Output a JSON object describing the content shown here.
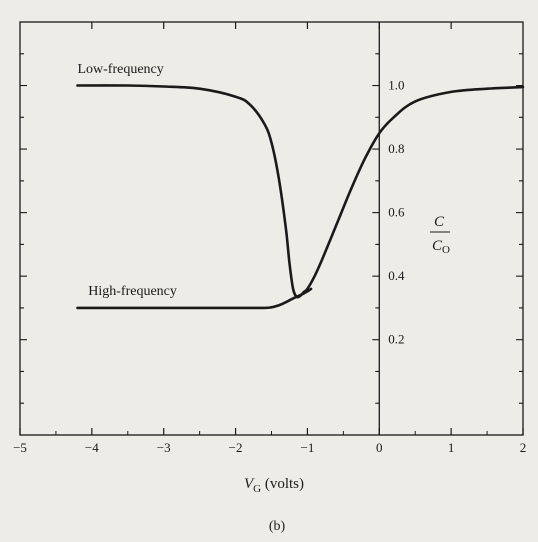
{
  "chart_data": {
    "type": "line",
    "title": "",
    "panel_label": "(b)",
    "xlabel": {
      "main": "V",
      "sub": "G",
      "suffix": " (volts)"
    },
    "ylabel": {
      "numerator": "C",
      "denominator_main": "C",
      "denominator_sub": "O"
    },
    "xlim": [
      -5,
      2
    ],
    "ylim": [
      -0.1,
      1.2
    ],
    "x_ticks": [
      -5,
      -4,
      -3,
      -2,
      -1,
      0,
      1,
      2
    ],
    "x_tick_labels": [
      "−5",
      "−4",
      "−3",
      "−2",
      "−1",
      "0",
      "1",
      "2"
    ],
    "y_ticks": [
      0.2,
      0.4,
      0.6,
      0.8,
      1.0
    ],
    "y_tick_labels": [
      "0.2",
      "0.4",
      "0.6",
      "0.8",
      "1.0"
    ],
    "grid": false,
    "series": [
      {
        "name": "Low-frequency",
        "x": [
          -4.2,
          -3.5,
          -3.0,
          -2.5,
          -2.0,
          -1.8,
          -1.6,
          -1.5,
          -1.4,
          -1.3,
          -1.25,
          -1.2,
          -1.15,
          -1.1,
          -1.05,
          -1.0,
          -0.9,
          -0.8,
          -0.6,
          -0.4,
          -0.2,
          0.0,
          0.2,
          0.5,
          1.0,
          1.5,
          2.0
        ],
        "y": [
          1.0,
          1.0,
          0.997,
          0.99,
          0.965,
          0.94,
          0.88,
          0.82,
          0.71,
          0.55,
          0.44,
          0.36,
          0.335,
          0.338,
          0.35,
          0.36,
          0.4,
          0.45,
          0.56,
          0.67,
          0.77,
          0.85,
          0.9,
          0.95,
          0.98,
          0.99,
          0.995
        ]
      },
      {
        "name": "High-frequency",
        "x": [
          -4.2,
          -3.5,
          -3.0,
          -2.5,
          -2.0,
          -1.6,
          -1.5,
          -1.4,
          -1.3,
          -1.2,
          -1.1,
          -1.0,
          -0.95
        ],
        "y": [
          0.3,
          0.3,
          0.3,
          0.3,
          0.3,
          0.3,
          0.302,
          0.308,
          0.318,
          0.33,
          0.34,
          0.352,
          0.36
        ]
      }
    ],
    "annotations": [
      {
        "text": "Low-frequency",
        "x": -4.2,
        "y": 1.04
      },
      {
        "text": "High-frequency",
        "x": -4.05,
        "y": 0.34
      }
    ]
  }
}
